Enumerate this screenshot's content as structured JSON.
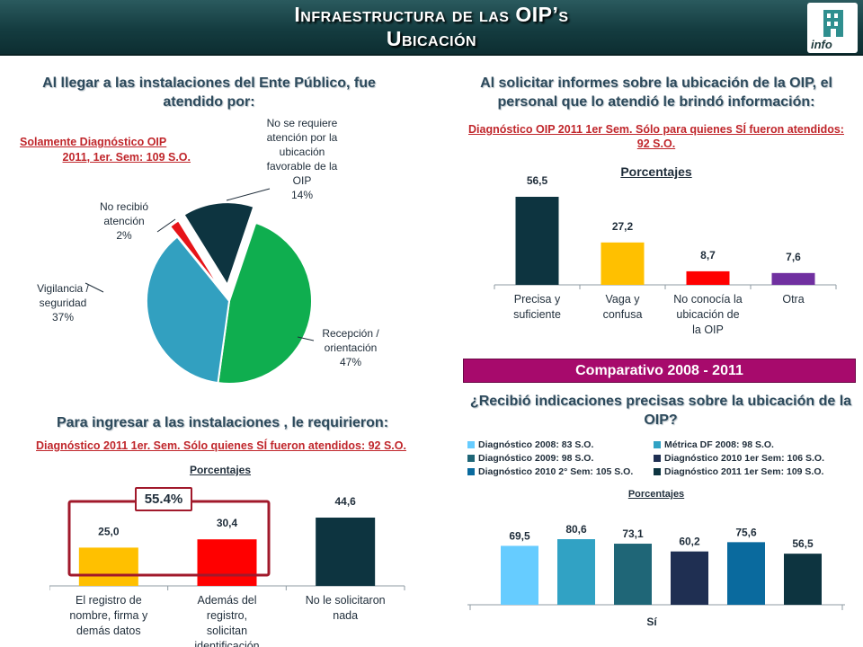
{
  "header": {
    "title_line1": "Infraestructura de las OIP’s",
    "title_line2": "Ubicación",
    "logo_text": "info"
  },
  "panel_pie": {
    "title": "Al llegar a las instalaciones del Ente Público, fue atendido por:",
    "note_line1": "Solamente Diagnóstico OIP",
    "note_line2": "2011, 1er. Sem: 109 S.O."
  },
  "panel_info": {
    "title": "Al solicitar informes sobre la ubicación de la OIP, el personal que lo atendió le brindó información:",
    "note": "Diagnóstico OIP 2011 1er Sem. Sólo para quienes SÍ fueron atendidos: 92 S.O.",
    "units": "Porcentajes"
  },
  "panel_req": {
    "title": "Para ingresar a las instalaciones , le requirieron:",
    "note": "Diagnóstico 2011 1er. Sem. Sólo quienes SÍ fueron atendidos: 92 S.O.",
    "units": "Porcentajes",
    "badge": "55.4%"
  },
  "panel_cmp": {
    "banner": "Comparativo 2008 - 2011",
    "title": "¿Recibió indicaciones precisas sobre la ubicación de la OIP?",
    "units": "Porcentajes"
  },
  "chart_data": [
    {
      "type": "pie",
      "labels": [
        "No se requiere atención por la ubicación favorable de la OIP",
        "Recepción / orientación",
        "Vigilancia / seguridad",
        "No recibió atención"
      ],
      "values": [
        14,
        47,
        37,
        2
      ],
      "value_labels": [
        "14%",
        "47%",
        "37%",
        "2%"
      ],
      "colors": [
        "#0d3440",
        "#0fae4f",
        "#32a0c0",
        "#e61318"
      ]
    },
    {
      "type": "bar",
      "categories": [
        "Precisa y suficiente",
        "Vaga y confusa",
        "No conocía la ubicación de la OIP",
        "Otra"
      ],
      "values": [
        56.5,
        27.2,
        8.7,
        7.6
      ],
      "value_labels": [
        "56,5",
        "27,2",
        "8,7",
        "7,6"
      ],
      "colors": [
        "#0d3440",
        "#ffc000",
        "#ff0000",
        "#7030a0"
      ],
      "title": "Porcentajes"
    },
    {
      "type": "bar",
      "categories": [
        "El registro de nombre, firma y demás datos",
        "Además del registro, solicitan identificación",
        "No le solicitaron nada"
      ],
      "values": [
        25.0,
        30.4,
        44.6
      ],
      "value_labels": [
        "25,0",
        "30,4",
        "44,6"
      ],
      "colors": [
        "#ffc000",
        "#ff0000",
        "#0d3440"
      ],
      "title": "Porcentajes"
    },
    {
      "type": "bar",
      "categories": [
        "Sí"
      ],
      "series": [
        {
          "name": "Diagnóstico 2008: 83 S.O.",
          "values": [
            69.5
          ],
          "value_label": "69,5",
          "color": "#66ccff"
        },
        {
          "name": "Métrica DF 2008: 98 S.O.",
          "values": [
            80.6
          ],
          "value_label": "80,6",
          "color": "#31a2c4"
        },
        {
          "name": "Diagnóstico 2009: 98 S.O.",
          "values": [
            73.1
          ],
          "value_label": "73,1",
          "color": "#1f6677"
        },
        {
          "name": "Diagnóstico 2010 1er Sem: 106 S.O.",
          "values": [
            60.2
          ],
          "value_label": "60,2",
          "color": "#1f2f52"
        },
        {
          "name": "Diagnóstico 2010 2° Sem: 105 S.O.",
          "values": [
            75.6
          ],
          "value_label": "75,6",
          "color": "#0a6a9e"
        },
        {
          "name": "Diagnóstico 2011 1er Sem: 109 S.O.",
          "values": [
            56.5
          ],
          "value_label": "56,5",
          "color": "#0d3440"
        }
      ],
      "title": "Porcentajes"
    }
  ]
}
